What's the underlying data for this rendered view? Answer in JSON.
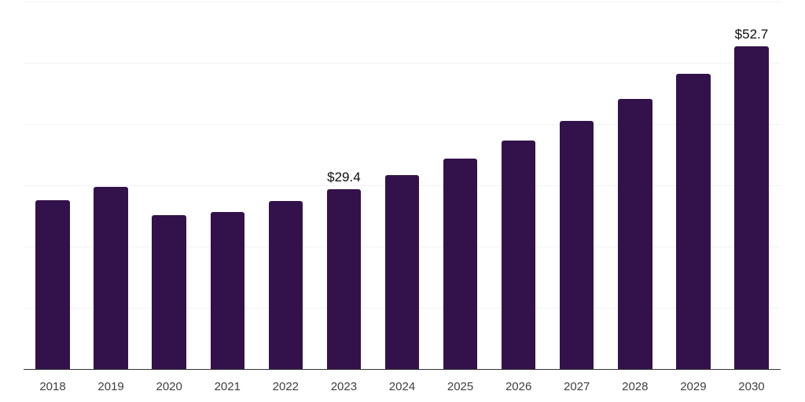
{
  "chart_data": {
    "type": "bar",
    "title": "",
    "xlabel": "",
    "ylabel": "",
    "categories": [
      "2018",
      "2019",
      "2020",
      "2021",
      "2022",
      "2023",
      "2024",
      "2025",
      "2026",
      "2027",
      "2028",
      "2029",
      "2030"
    ],
    "values": [
      27.6,
      29.8,
      25.1,
      25.7,
      27.5,
      29.4,
      31.7,
      34.3,
      37.3,
      40.5,
      44.1,
      48.2,
      52.7
    ],
    "value_labels": [
      {
        "category": "2023",
        "text": "$29.4"
      },
      {
        "category": "2030",
        "text": "$52.7"
      }
    ],
    "ylim": [
      0,
      60
    ],
    "grid_step": 10,
    "grid": "horizontal-only",
    "legend": "none",
    "y_axis_tick_labels_visible": false,
    "colors": {
      "bar": "#33124B",
      "grid_line": "#f2f2f2",
      "axis_line": "#333333",
      "tick_label": "#3f3f3f",
      "value_label": "#0d0d0d",
      "background": "#ffffff"
    }
  }
}
